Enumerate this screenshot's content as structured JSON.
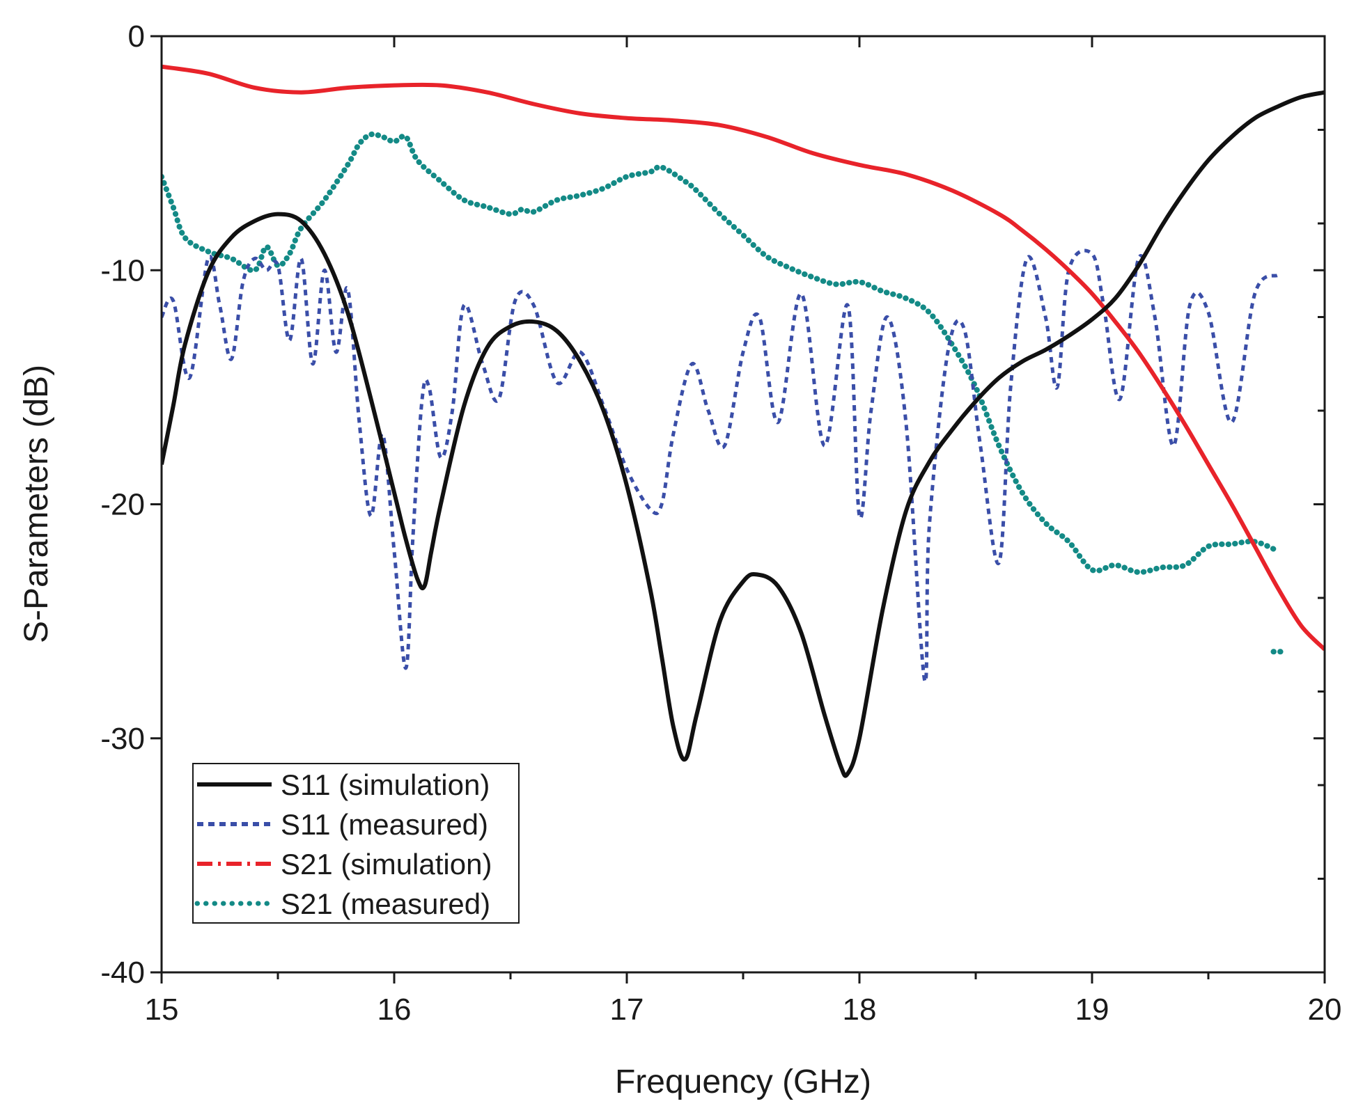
{
  "chart_data": {
    "type": "line",
    "title": "",
    "xlabel": "Frequency (GHz)",
    "ylabel": "S-Parameters (dB)",
    "xlim": [
      15,
      20
    ],
    "ylim": [
      -40,
      0
    ],
    "x_ticks": [
      15,
      16,
      17,
      18,
      19,
      20
    ],
    "y_ticks": [
      0,
      -10,
      -20,
      -30,
      -40
    ],
    "x_tick_labels": [
      "15",
      "16",
      "17",
      "18",
      "19",
      "20"
    ],
    "y_tick_labels": [
      "0",
      "-10",
      "-20",
      "-30",
      "-40"
    ],
    "x_minor_ticks": [
      15.5,
      16.5,
      17.5,
      18.5,
      19.5
    ],
    "y_minor_ticks": [
      -4,
      -8,
      -12,
      -16,
      -24,
      -28,
      -32,
      -36
    ],
    "grid": false,
    "legend_position": "bottom-left",
    "series": [
      {
        "name": "S11 (simulation)",
        "color": "#111111",
        "style": "solid",
        "x": [
          15.0,
          15.05,
          15.1,
          15.2,
          15.3,
          15.4,
          15.5,
          15.6,
          15.7,
          15.8,
          15.9,
          16.0,
          16.05,
          16.1,
          16.13,
          16.16,
          16.2,
          16.3,
          16.4,
          16.5,
          16.6,
          16.7,
          16.8,
          16.9,
          17.0,
          17.1,
          17.15,
          17.2,
          17.25,
          17.3,
          17.4,
          17.5,
          17.56,
          17.65,
          17.75,
          17.85,
          17.92,
          17.95,
          18.0,
          18.1,
          18.2,
          18.3,
          18.4,
          18.5,
          18.6,
          18.7,
          18.8,
          18.9,
          19.0,
          19.1,
          19.2,
          19.3,
          19.4,
          19.5,
          19.6,
          19.7,
          19.8,
          19.9,
          20.0
        ],
        "values": [
          -18.3,
          -15.8,
          -13.2,
          -10.1,
          -8.6,
          -7.9,
          -7.6,
          -7.9,
          -9.3,
          -11.8,
          -15.5,
          -19.5,
          -21.5,
          -23.2,
          -23.5,
          -22.0,
          -20.0,
          -15.8,
          -13.3,
          -12.4,
          -12.2,
          -12.6,
          -13.9,
          -16.0,
          -19.2,
          -23.6,
          -26.5,
          -29.5,
          -30.9,
          -29.0,
          -25.0,
          -23.3,
          -23.0,
          -23.5,
          -25.5,
          -29.0,
          -31.2,
          -31.5,
          -30.0,
          -24.5,
          -20.3,
          -18.2,
          -16.8,
          -15.6,
          -14.6,
          -13.9,
          -13.4,
          -12.8,
          -12.1,
          -11.2,
          -9.8,
          -8.1,
          -6.6,
          -5.3,
          -4.3,
          -3.5,
          -3.0,
          -2.6,
          -2.4
        ]
      },
      {
        "name": "S11 (measured)",
        "color": "#3a4ea8",
        "style": "dotted",
        "x": [
          15.0,
          15.05,
          15.12,
          15.2,
          15.25,
          15.3,
          15.35,
          15.4,
          15.45,
          15.5,
          15.55,
          15.6,
          15.65,
          15.7,
          15.75,
          15.8,
          15.85,
          15.9,
          15.95,
          16.0,
          16.05,
          16.08,
          16.12,
          16.15,
          16.2,
          16.25,
          16.3,
          16.38,
          16.45,
          16.52,
          16.6,
          16.7,
          16.8,
          16.9,
          17.0,
          17.1,
          17.15,
          17.2,
          17.28,
          17.35,
          17.42,
          17.5,
          17.57,
          17.65,
          17.75,
          17.85,
          17.95,
          18.0,
          18.05,
          18.12,
          18.2,
          18.28,
          18.3,
          18.38,
          18.45,
          18.52,
          18.6,
          18.65,
          18.72,
          18.8,
          18.85,
          18.9,
          19.0,
          19.05,
          19.12,
          19.2,
          19.27,
          19.35,
          19.42,
          19.5,
          19.6,
          19.7,
          19.8
        ],
        "values": [
          -12.0,
          -11.3,
          -14.6,
          -9.5,
          -11.5,
          -13.8,
          -10.5,
          -9.5,
          -10.0,
          -9.8,
          -13.0,
          -9.5,
          -14.0,
          -10.0,
          -13.5,
          -10.8,
          -16.5,
          -20.5,
          -17.0,
          -22.0,
          -27.0,
          -21.5,
          -15.5,
          -15.0,
          -18.0,
          -16.0,
          -11.5,
          -14.0,
          -15.5,
          -11.3,
          -11.5,
          -14.8,
          -13.5,
          -15.8,
          -18.5,
          -20.2,
          -20.0,
          -17.0,
          -14.0,
          -16.0,
          -17.5,
          -13.5,
          -12.0,
          -16.5,
          -11.0,
          -17.5,
          -11.5,
          -20.5,
          -16.0,
          -12.0,
          -16.5,
          -27.5,
          -21.0,
          -13.5,
          -12.5,
          -17.5,
          -22.5,
          -15.0,
          -9.5,
          -12.0,
          -15.0,
          -10.0,
          -9.3,
          -11.5,
          -15.5,
          -9.5,
          -12.0,
          -17.5,
          -11.5,
          -11.8,
          -16.5,
          -11.0,
          -10.2
        ]
      },
      {
        "name": "S21 (simulation)",
        "color": "#e8232a",
        "style": "dash-dot",
        "x": [
          15.0,
          15.2,
          15.4,
          15.6,
          15.8,
          16.0,
          16.2,
          16.4,
          16.6,
          16.8,
          17.0,
          17.2,
          17.4,
          17.6,
          17.8,
          18.0,
          18.2,
          18.4,
          18.6,
          18.7,
          18.8,
          18.9,
          19.0,
          19.1,
          19.2,
          19.3,
          19.4,
          19.5,
          19.6,
          19.7,
          19.8,
          19.9,
          20.0
        ],
        "values": [
          -1.3,
          -1.6,
          -2.2,
          -2.4,
          -2.2,
          -2.1,
          -2.1,
          -2.4,
          -2.9,
          -3.3,
          -3.5,
          -3.6,
          -3.8,
          -4.3,
          -5.0,
          -5.5,
          -5.9,
          -6.6,
          -7.6,
          -8.3,
          -9.1,
          -10.0,
          -11.0,
          -12.2,
          -13.5,
          -15.0,
          -16.6,
          -18.3,
          -20.0,
          -21.8,
          -23.6,
          -25.2,
          -26.2
        ]
      },
      {
        "name": "S21 (measured)",
        "color": "#138a86",
        "style": "dotted",
        "x": [
          15.0,
          15.05,
          15.1,
          15.2,
          15.3,
          15.4,
          15.45,
          15.5,
          15.55,
          15.6,
          15.7,
          15.8,
          15.85,
          15.9,
          15.95,
          16.0,
          16.05,
          16.1,
          16.2,
          16.3,
          16.4,
          16.5,
          16.55,
          16.6,
          16.7,
          16.8,
          16.9,
          17.0,
          17.1,
          17.15,
          17.25,
          17.3,
          17.4,
          17.5,
          17.6,
          17.7,
          17.8,
          17.9,
          18.0,
          18.1,
          18.2,
          18.3,
          18.4,
          18.5,
          18.6,
          18.7,
          18.8,
          18.9,
          19.0,
          19.1,
          19.2,
          19.3,
          19.4,
          19.5,
          19.6,
          19.7,
          19.8
        ],
        "values": [
          -6.0,
          -7.3,
          -8.6,
          -9.2,
          -9.5,
          -10.0,
          -9.0,
          -9.8,
          -9.3,
          -8.2,
          -7.0,
          -5.5,
          -4.6,
          -4.2,
          -4.3,
          -4.5,
          -4.3,
          -5.3,
          -6.2,
          -7.0,
          -7.3,
          -7.6,
          -7.4,
          -7.5,
          -7.0,
          -6.8,
          -6.5,
          -6.0,
          -5.8,
          -5.6,
          -6.2,
          -6.6,
          -7.6,
          -8.5,
          -9.4,
          -9.9,
          -10.3,
          -10.6,
          -10.5,
          -10.9,
          -11.2,
          -11.8,
          -13.2,
          -15.0,
          -17.5,
          -19.5,
          -20.8,
          -21.6,
          -22.8,
          -22.6,
          -22.9,
          -22.7,
          -22.6,
          -21.8,
          -21.7,
          -21.6,
          -22.0
        ]
      },
      {
        "name": "S21 (measured) tail",
        "color": "#138a86",
        "style": "dotted",
        "x": [
          19.78,
          19.82
        ],
        "values": [
          -26.3,
          -26.3
        ]
      }
    ]
  },
  "legend": {
    "items": [
      {
        "label": "S11 (simulation)",
        "color": "#111111",
        "style": "solid"
      },
      {
        "label": "S11 (measured)",
        "color": "#3a4ea8",
        "style": "dotted"
      },
      {
        "label": "S21 (simulation)",
        "color": "#e8232a",
        "style": "dash-dot"
      },
      {
        "label": "S21 (measured)",
        "color": "#138a86",
        "style": "dotted"
      }
    ]
  }
}
